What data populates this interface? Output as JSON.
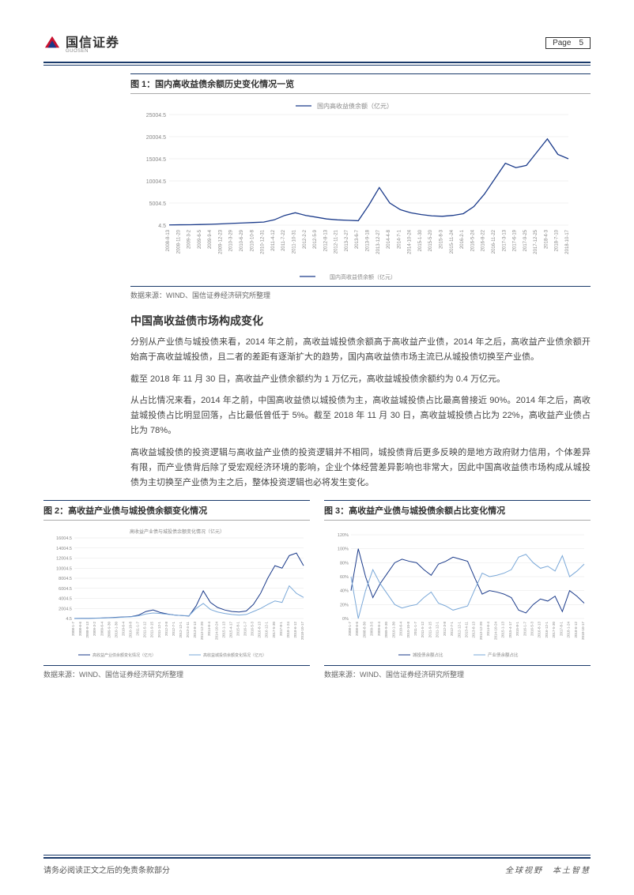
{
  "header": {
    "brand": "国信证券",
    "brand_sub": "GUOSEN",
    "page_label": "Page",
    "page_num": "5"
  },
  "fig1": {
    "title": "图 1：国内高收益债余额历史变化情况一览",
    "legend": "国内高收益债余额（亿元）",
    "source": "数据来源：WIND、国信证券经济研究所整理",
    "type": "line",
    "line_color": "#1a3a8a",
    "grid_color": "#e5e5e5",
    "text_color": "#888888",
    "ylim": [
      4.5,
      25004.5
    ],
    "yticks": [
      4.5,
      5004.5,
      10004.5,
      15004.5,
      20004.5,
      25004.5
    ],
    "xlabels": [
      "2008-8-13",
      "2008-11-20",
      "2009-3-2",
      "2009-6-5",
      "2009-9-4",
      "2009-12-23",
      "2010-3-29",
      "2010-6-29",
      "2010-10-8",
      "2010-12-31",
      "2011-4-12",
      "2011-7-22",
      "2011-10-31",
      "2012-2-2",
      "2012-5-9",
      "2012-8-13",
      "2012-11-21",
      "2013-2-27",
      "2013-6-7",
      "2013-9-18",
      "2013-12-27",
      "2014-4-8",
      "2014-7-1",
      "2014-10-24",
      "2015-1-30",
      "2015-5-20",
      "2015-8-3",
      "2015-11-24",
      "2016-2-1",
      "2016-5-24",
      "2016-8-22",
      "2016-11-22",
      "2017-3-13",
      "2017-6-19",
      "2017-9-25",
      "2017-12-25",
      "2018-4-3",
      "2018-7-10",
      "2018-10-17"
    ],
    "values": [
      50,
      80,
      100,
      150,
      200,
      300,
      400,
      500,
      600,
      700,
      1200,
      2200,
      2800,
      2200,
      1800,
      1400,
      1200,
      1100,
      1000,
      4500,
      8500,
      5000,
      3500,
      2800,
      2400,
      2100,
      2000,
      2200,
      2600,
      4200,
      7000,
      10500,
      14000,
      13000,
      13500,
      16500,
      19500,
      16000,
      15000
    ]
  },
  "section": {
    "heading": "中国高收益债市场构成变化",
    "p1": "分别从产业债与城投债来看，2014 年之前，高收益城投债余额高于高收益产业债，2014 年之后，高收益产业债余额开始高于高收益城投债，且二者的差距有逐渐扩大的趋势，国内高收益债市场主流已从城投债切换至产业债。",
    "p2": "截至 2018 年 11 月 30 日，高收益产业债余额约为 1 万亿元，高收益城投债余额约为 0.4 万亿元。",
    "p3": "从占比情况来看，2014 年之前，中国高收益债以城投债为主，高收益城投债占比最高曾接近 90%。2014 年之后，高收益城投债占比明显回落，占比最低曾低于 5%。截至 2018 年 11 月 30 日，高收益城投债占比为 22%，高收益产业债占比为 78%。",
    "p4": "高收益城投债的投资逻辑与高收益产业债的投资逻辑并不相同，城投债背后更多反映的是地方政府财力信用，个体差异有限，而产业债背后除了受宏观经济环境的影响，企业个体经营差异影响也非常大，因此中国高收益债市场构成从城投债为主切换至产业债为主之后，整体投资逻辑也必将发生变化。"
  },
  "fig2": {
    "title": "图 2：高收益产业债与城投债余额变化情况",
    "subtitle": "高收益产业债与城投债余额变化情况（亿元）",
    "legend1": "高收益产业债余额变化情况（亿元）",
    "legend2": "高收益城投债余额变化情况（亿元）",
    "source": "数据来源：WIND、国信证券经济研究所整理",
    "type": "line",
    "colors": [
      "#1a3a8a",
      "#7aa8d8"
    ],
    "ylim": [
      4.5,
      16004.5
    ],
    "yticks": [
      4.5,
      2004.5,
      4004.5,
      6004.5,
      8004.5,
      10004.5,
      12004.5,
      14004.5,
      16004.5
    ],
    "xlabels": [
      "2008-1-7",
      "2008-6-6",
      "2008-8-13",
      "2009-3-2",
      "2009-6-4",
      "2009-9-30",
      "2010-1-30",
      "2010-6-4",
      "2010-10-8",
      "2011-1-7",
      "2011-5-12",
      "2011-9-15",
      "2011-12-1",
      "2012-3-8",
      "2012-7-1",
      "2012-12-1",
      "2013-4-11",
      "2013-8-13",
      "2013-12-20",
      "2014-6-4",
      "2014-10-24",
      "2015-1-13",
      "2015-4-17",
      "2015-8-1",
      "2016-1-7",
      "2016-5-3",
      "2016-8-13",
      "2016-12-1",
      "2017-5-30",
      "2017-8-1",
      "2018-1-24",
      "2018-6-12",
      "2018-10-17"
    ],
    "series1": [
      30,
      40,
      50,
      80,
      120,
      180,
      250,
      320,
      400,
      700,
      1400,
      1700,
      1200,
      900,
      700,
      600,
      500,
      2500,
      5500,
      3200,
      2200,
      1700,
      1400,
      1300,
      1500,
      2800,
      5000,
      8000,
      10500,
      10000,
      12500,
      13000,
      10500
    ],
    "series2": [
      20,
      30,
      40,
      60,
      100,
      150,
      200,
      280,
      350,
      550,
      900,
      1100,
      1000,
      850,
      700,
      600,
      550,
      2000,
      3000,
      1800,
      1300,
      1000,
      800,
      700,
      800,
      1400,
      2000,
      2800,
      3500,
      3200,
      6500,
      5000,
      4200
    ]
  },
  "fig3": {
    "title": "图 3：高收益产业债与城投债余额占比变化情况",
    "legend1": "城投债余额占比",
    "legend2": "产业债余额占比",
    "source": "数据来源：WIND、国信证券经济研究所整理",
    "type": "line",
    "colors": [
      "#1a3a8a",
      "#7aa8d8"
    ],
    "ylim": [
      0,
      1.2
    ],
    "yticks": [
      "0%",
      "20%",
      "40%",
      "60%",
      "80%",
      "100%",
      "120%"
    ],
    "xlabels": [
      "2008-1-7",
      "2008-6-6",
      "2008-8-30",
      "2009-3-5",
      "2009-6-4",
      "2009-9-30",
      "2010-1-30",
      "2010-6-4",
      "2010-10-8",
      "2011-1-7",
      "2011-5-12",
      "2011-9-15",
      "2011-12-1",
      "2012-3-8",
      "2012-7-1",
      "2012-12-1",
      "2013-4-11",
      "2013-8-13",
      "2013-12-20",
      "2014-6-4",
      "2014-10-24",
      "2015-1-13",
      "2015-4-17",
      "2015-8-1",
      "2016-1-7",
      "2016-5-3",
      "2016-8-13",
      "2016-12-1",
      "2017-5-30",
      "2017-8-1",
      "2018-1-24",
      "2018-6-12",
      "2018-10-17"
    ],
    "series1": [
      0.4,
      1.0,
      0.6,
      0.3,
      0.5,
      0.65,
      0.8,
      0.85,
      0.82,
      0.8,
      0.7,
      0.62,
      0.78,
      0.82,
      0.88,
      0.85,
      0.82,
      0.58,
      0.35,
      0.4,
      0.38,
      0.35,
      0.3,
      0.12,
      0.08,
      0.2,
      0.28,
      0.25,
      0.32,
      0.1,
      0.4,
      0.32,
      0.22
    ],
    "series2": [
      0.6,
      0.0,
      0.4,
      0.7,
      0.5,
      0.35,
      0.2,
      0.15,
      0.18,
      0.2,
      0.3,
      0.38,
      0.22,
      0.18,
      0.12,
      0.15,
      0.18,
      0.42,
      0.65,
      0.6,
      0.62,
      0.65,
      0.7,
      0.88,
      0.92,
      0.8,
      0.72,
      0.75,
      0.68,
      0.9,
      0.6,
      0.68,
      0.78
    ]
  },
  "footer": {
    "left": "请务必阅读正文之后的免责条款部分",
    "right": "全球视野　本土智慧"
  }
}
